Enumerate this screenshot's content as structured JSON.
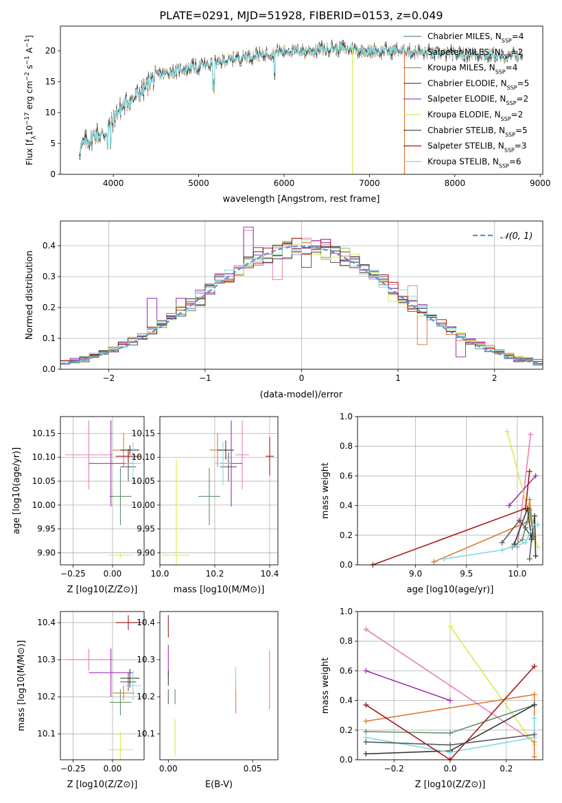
{
  "figure_title": "PLATE=0291, MJD=51928, FIBERID=0153, z=0.049",
  "colors": {
    "Chabrier MILES": "#5f8f6a",
    "Salpeter MILES": "#e97fb6",
    "Kroupa MILES": "#df7a35",
    "Chabrier ELODIE": "#5a5a5a",
    "Salpeter ELODIE": "#9a2fb4",
    "Kroupa ELODIE": "#d8ec4e",
    "Chabrier STELIB": "#383838",
    "Salpeter STELIB": "#a01818",
    "Kroupa STELIB": "#7fd8e0",
    "gaussian": "#5f8fdc"
  },
  "chart_data": [
    {
      "id": "spectrum",
      "type": "line",
      "title": "",
      "xlabel": "wavelength [Angstrom, rest frame]",
      "ylabel": "Flux [f_λ 10^-17 erg cm^-2 s^-1 A^-1]",
      "xlim": [
        3380,
        9030
      ],
      "ylim": [
        0,
        24
      ],
      "xticks": [
        4000,
        5000,
        6000,
        7000,
        8000,
        9000
      ],
      "yticks": [
        0,
        5,
        10,
        15,
        20
      ],
      "data_range": [
        3600,
        8800
      ],
      "continuum": {
        "x": [
          3600,
          3700,
          3800,
          3900,
          4000,
          4100,
          4300,
          4500,
          4800,
          5000,
          5200,
          5500,
          5800,
          6000,
          6300,
          6600,
          7000,
          7400,
          7800,
          8200,
          8600,
          8800
        ],
        "y": [
          4.0,
          5.5,
          6.5,
          6.5,
          9.0,
          11.0,
          13.0,
          16.0,
          17.0,
          17.5,
          18.0,
          19.0,
          19.5,
          20.0,
          20.0,
          20.5,
          20.0,
          20.0,
          19.5,
          19.5,
          19.0,
          19.5
        ]
      },
      "dropouts": [
        {
          "series": "Kroupa ELODIE",
          "x": 6800
        },
        {
          "series": "Kroupa MILES",
          "x": 7410
        }
      ],
      "legend": {
        "placement": "top-right",
        "entries": [
          {
            "name": "Chabrier MILES",
            "nssp": "4"
          },
          {
            "name": "Salpeter MILES",
            "nssp": "2"
          },
          {
            "name": "Kroupa MILES",
            "nssp": "4"
          },
          {
            "name": "Chabrier ELODIE",
            "nssp": "5"
          },
          {
            "name": "Salpeter ELODIE",
            "nssp": "2"
          },
          {
            "name": "Kroupa ELODIE",
            "nssp": "2"
          },
          {
            "name": "Chabrier STELIB",
            "nssp": "5"
          },
          {
            "name": "Salpeter STELIB",
            "nssp": "3"
          },
          {
            "name": "Kroupa STELIB",
            "nssp": "6"
          }
        ]
      }
    },
    {
      "id": "residuals",
      "type": "histogram",
      "xlabel": "(data-model)/error",
      "ylabel": "Normed distribution",
      "xlim": [
        -2.5,
        2.5
      ],
      "ylim": [
        0,
        0.48
      ],
      "xticks": [
        -2,
        -1,
        0,
        1,
        2
      ],
      "yticks": [
        0.0,
        0.1,
        0.2,
        0.3,
        0.4
      ],
      "grid": true,
      "bin_width": 0.1,
      "legend": {
        "placement": "top-right",
        "entries": [
          "𝒩(0, 1)"
        ]
      },
      "highlighted_bins": [
        {
          "series": "Salpeter ELODIE",
          "x0": -0.6,
          "x1": -0.5,
          "y": 0.46
        },
        {
          "series": "Salpeter ELODIE",
          "x0": -1.6,
          "x1": -1.5,
          "y": 0.23
        },
        {
          "series": "Salpeter ELODIE",
          "x0": -1.3,
          "x1": -1.2,
          "y": 0.23
        },
        {
          "series": "Salpeter ELODIE",
          "x0": 1.6,
          "x1": 1.7,
          "y": 0.04
        },
        {
          "series": "Salpeter MILES",
          "x0": -0.6,
          "x1": -0.5,
          "y": 0.45
        },
        {
          "series": "Salpeter MILES",
          "x0": -0.3,
          "x1": -0.2,
          "y": 0.29
        },
        {
          "series": "Salpeter MILES",
          "x0": 1.1,
          "x1": 1.2,
          "y": 0.27
        },
        {
          "series": "Kroupa MILES",
          "x0": 1.2,
          "x1": 1.3,
          "y": 0.08
        },
        {
          "series": "Kroupa ELODIE",
          "x0": 0.9,
          "x1": 1.0,
          "y": 0.22
        },
        {
          "series": "Chabrier ELODIE",
          "x0": 0.0,
          "x1": 0.1,
          "y": 0.33
        }
      ]
    },
    {
      "id": "age_vs_Z",
      "type": "scatter",
      "xlabel": "Z [log10(Z/Z⊙)]",
      "ylabel": "age  [log10(age/yr)]",
      "xlim": [
        -0.33,
        0.2
      ],
      "ylim": [
        9.875,
        10.185
      ],
      "xticks": [
        "-0.25",
        "0.00"
      ],
      "xtick_values": [
        -0.25,
        0.0
      ],
      "yticks": [
        "9.90",
        "9.95",
        "10.00",
        "10.05",
        "10.10",
        "10.15"
      ],
      "ytick_values": [
        9.9,
        9.95,
        10.0,
        10.05,
        10.1,
        10.15
      ],
      "grid": true,
      "points": [
        {
          "series": "Chabrier MILES",
          "x": 0.05,
          "y": 10.018,
          "xerr": 0.07,
          "yerr": 0.06
        },
        {
          "series": "Salpeter MILES",
          "x": -0.15,
          "y": 10.105,
          "xerr": 0.15,
          "yerr": 0.072
        },
        {
          "series": "Kroupa MILES",
          "x": 0.07,
          "y": 10.115,
          "xerr": 0.07,
          "yerr": 0.035
        },
        {
          "series": "Chabrier ELODIE",
          "x": 0.1,
          "y": 10.08,
          "xerr": 0.05,
          "yerr": 0.03
        },
        {
          "series": "Salpeter ELODIE",
          "x": -0.01,
          "y": 10.087,
          "xerr": 0.14,
          "yerr": 0.09
        },
        {
          "series": "Kroupa ELODIE",
          "x": 0.05,
          "y": 9.895,
          "xerr": 0.08,
          "yerr": 0.004
        },
        {
          "series": "Chabrier STELIB",
          "x": 0.11,
          "y": 10.115,
          "xerr": 0.06,
          "yerr": 0.01
        },
        {
          "series": "Salpeter STELIB",
          "x": 0.1,
          "y": 10.102,
          "xerr": 0.08,
          "yerr": 0.015
        },
        {
          "series": "Kroupa STELIB",
          "x": 0.13,
          "y": 10.087,
          "xerr": 0.05,
          "yerr": 0.045
        }
      ]
    },
    {
      "id": "age_vs_mass",
      "type": "scatter",
      "xlabel": "mass [log10(M/M⊙)]",
      "ylabel": "",
      "xlim": [
        10.0,
        10.43
      ],
      "ylim": [
        9.875,
        10.185
      ],
      "xticks": [
        "10.0",
        "10.2",
        "10.4"
      ],
      "xtick_values": [
        10.0,
        10.2,
        10.4
      ],
      "yticks": [
        "9.90",
        "9.95",
        "10.00",
        "10.05",
        "10.10",
        "10.15"
      ],
      "ytick_values": [
        9.9,
        9.95,
        10.0,
        10.05,
        10.1,
        10.15
      ],
      "grid": true,
      "points": [
        {
          "series": "Chabrier MILES",
          "x": 10.18,
          "y": 10.018,
          "xerr": 0.04,
          "yerr": 0.06
        },
        {
          "series": "Salpeter MILES",
          "x": 10.3,
          "y": 10.105,
          "xerr": 0.025,
          "yerr": 0.072
        },
        {
          "series": "Kroupa MILES",
          "x": 10.21,
          "y": 10.115,
          "xerr": 0.03,
          "yerr": 0.035
        },
        {
          "series": "Chabrier ELODIE",
          "x": 10.25,
          "y": 10.08,
          "xerr": 0.03,
          "yerr": 0.03
        },
        {
          "series": "Salpeter ELODIE",
          "x": 10.26,
          "y": 10.087,
          "xerr": 0.04,
          "yerr": 0.09
        },
        {
          "series": "Kroupa ELODIE",
          "x": 10.06,
          "y": 9.895,
          "xerr": 0.05,
          "yerr": 0.2
        },
        {
          "series": "Chabrier STELIB",
          "x": 10.24,
          "y": 10.115,
          "xerr": 0.03,
          "yerr": 0.02
        },
        {
          "series": "Salpeter STELIB",
          "x": 10.4,
          "y": 10.102,
          "xerr": 0.015,
          "yerr": 0.04
        },
        {
          "series": "Kroupa STELIB",
          "x": 10.23,
          "y": 10.087,
          "xerr": 0.03,
          "yerr": 0.045
        }
      ]
    },
    {
      "id": "weight_vs_age",
      "type": "line",
      "xlabel": "age  [log10(age/yr)]",
      "ylabel": "mass weight",
      "xlim": [
        8.43,
        10.25
      ],
      "ylim": [
        0,
        1.0
      ],
      "xticks": [
        "9.0",
        "9.5",
        "10.0"
      ],
      "xtick_values": [
        9.0,
        9.5,
        10.0
      ],
      "yticks": [
        "0.0",
        "0.2",
        "0.4",
        "0.6",
        "0.8",
        "1.0"
      ],
      "ytick_values": [
        0.0,
        0.2,
        0.4,
        0.6,
        0.8,
        1.0
      ],
      "grid": true,
      "series": [
        {
          "name": "Kroupa MILES",
          "x": [
            9.18,
            10.1,
            10.12,
            10.15
          ],
          "y": [
            0.02,
            0.29,
            0.44,
            0.26
          ]
        },
        {
          "name": "Salpeter MILES",
          "x": [
            10.0,
            10.13
          ],
          "y": [
            0.12,
            0.88
          ]
        },
        {
          "name": "Salpeter ELODIE",
          "x": [
            9.92,
            10.18
          ],
          "y": [
            0.4,
            0.6
          ]
        },
        {
          "name": "Kroupa ELODIE",
          "x": [
            9.9,
            10.2
          ],
          "y": [
            0.9,
            0.12
          ]
        },
        {
          "name": "Chabrier MILES",
          "x": [
            9.95,
            10.05,
            10.12,
            10.16
          ],
          "y": [
            0.12,
            0.17,
            0.37,
            0.19
          ]
        },
        {
          "name": "Chabrier ELODIE",
          "x": [
            9.85,
            10.02,
            10.08,
            10.14,
            10.12
          ],
          "y": [
            0.15,
            0.3,
            0.25,
            0.18,
            0.04
          ]
        },
        {
          "name": "Chabrier STELIB",
          "x": [
            9.97,
            10.1,
            10.14,
            10.17,
            10.18
          ],
          "y": [
            0.14,
            0.38,
            0.17,
            0.33,
            0.06
          ]
        },
        {
          "name": "Salpeter STELIB",
          "x": [
            8.58,
            10.08,
            10.12
          ],
          "y": [
            0.0,
            0.38,
            0.63
          ]
        },
        {
          "name": "Kroupa STELIB",
          "x": [
            9.28,
            9.85,
            10.08,
            10.16,
            10.2
          ],
          "y": [
            0.04,
            0.1,
            0.15,
            0.27,
            0.27
          ]
        }
      ]
    },
    {
      "id": "mass_vs_Z",
      "type": "scatter",
      "xlabel": "Z [log10(Z/Z⊙)]",
      "ylabel": "mass [log10(M/M⊙)]",
      "xlim": [
        -0.33,
        0.2
      ],
      "ylim": [
        10.03,
        10.43
      ],
      "xticks": [
        "-0.25",
        "0.00"
      ],
      "xtick_values": [
        -0.25,
        0.0
      ],
      "yticks": [
        "10.1",
        "10.2",
        "10.3",
        "10.4"
      ],
      "ytick_values": [
        10.1,
        10.2,
        10.3,
        10.4
      ],
      "grid": true,
      "points": [
        {
          "series": "Chabrier MILES",
          "x": 0.05,
          "y": 10.185,
          "xerr": 0.07,
          "yerr": 0.035
        },
        {
          "series": "Salpeter MILES",
          "x": -0.15,
          "y": 10.3,
          "xerr": 0.15,
          "yerr": 0.03
        },
        {
          "series": "Kroupa MILES",
          "x": 0.07,
          "y": 10.21,
          "xerr": 0.07,
          "yerr": 0.02
        },
        {
          "series": "Chabrier ELODIE",
          "x": 0.1,
          "y": 10.24,
          "xerr": 0.05,
          "yerr": 0.025
        },
        {
          "series": "Salpeter ELODIE",
          "x": -0.01,
          "y": 10.265,
          "xerr": 0.14,
          "yerr": 0.065
        },
        {
          "series": "Kroupa ELODIE",
          "x": 0.05,
          "y": 10.057,
          "xerr": 0.08,
          "yerr": 0.05
        },
        {
          "series": "Chabrier STELIB",
          "x": 0.11,
          "y": 10.25,
          "xerr": 0.06,
          "yerr": 0.025
        },
        {
          "series": "Salpeter STELIB",
          "x": 0.1,
          "y": 10.4,
          "xerr": 0.08,
          "yerr": 0.02
        },
        {
          "series": "Kroupa STELIB",
          "x": 0.13,
          "y": 10.23,
          "xerr": 0.05,
          "yerr": 0.04
        }
      ]
    },
    {
      "id": "mass_vs_ebv",
      "type": "scatter",
      "xlabel": "E(B-V)",
      "ylabel": "",
      "xlim": [
        -0.005,
        0.065
      ],
      "ylim": [
        10.03,
        10.43
      ],
      "xticks": [
        "0.00",
        "0.05"
      ],
      "xtick_values": [
        0.0,
        0.05
      ],
      "yticks": [
        "10.1",
        "10.2",
        "10.3",
        "10.4"
      ],
      "ytick_values": [
        10.1,
        10.2,
        10.3,
        10.4
      ],
      "grid": false,
      "points": [
        {
          "series": "Chabrier MILES",
          "x": 0.004,
          "y": 10.2,
          "xerr": 0.0,
          "yerr": 0.02
        },
        {
          "series": "Salpeter MILES",
          "x": 0.06,
          "y": 10.245,
          "xerr": 0.0,
          "yerr": 0.08
        },
        {
          "series": "Kroupa MILES",
          "x": 0.04,
          "y": 10.2,
          "xerr": 0.0,
          "yerr": 0.045
        },
        {
          "series": "Chabrier ELODIE",
          "x": 0.0,
          "y": 10.2,
          "xerr": 0.0,
          "yerr": 0.02
        },
        {
          "series": "Salpeter ELODIE",
          "x": 0.0,
          "y": 10.3,
          "xerr": 0.0,
          "yerr": 0.04
        },
        {
          "series": "Kroupa ELODIE",
          "x": 0.004,
          "y": 10.09,
          "xerr": 0.0,
          "yerr": 0.05
        },
        {
          "series": "Chabrier STELIB",
          "x": 0.0,
          "y": 10.25,
          "xerr": 0.0,
          "yerr": 0.02
        },
        {
          "series": "Salpeter STELIB",
          "x": 0.0,
          "y": 10.39,
          "xerr": 0.0,
          "yerr": 0.03
        },
        {
          "series": "Kroupa STELIB",
          "x": 0.04,
          "y": 10.25,
          "xerr": 0.0,
          "yerr": 0.03
        }
      ]
    },
    {
      "id": "weight_vs_Z",
      "type": "line",
      "xlabel": "Z [log10(Z/Z⊙)]",
      "ylabel": "mass weight",
      "xlim": [
        -0.33,
        0.33
      ],
      "ylim": [
        0,
        1.0
      ],
      "xticks": [
        "-0.2",
        "0.0",
        "0.2"
      ],
      "xtick_values": [
        -0.2,
        0.0,
        0.2
      ],
      "yticks": [
        "0.0",
        "0.2",
        "0.4",
        "0.6",
        "0.8",
        "1.0"
      ],
      "ytick_values": [
        0.0,
        0.2,
        0.4,
        0.6,
        0.8,
        1.0
      ],
      "grid": true,
      "series": [
        {
          "name": "Salpeter MILES",
          "x": [
            -0.3,
            0.3
          ],
          "y": [
            0.88,
            0.12
          ]
        },
        {
          "name": "Salpeter ELODIE",
          "x": [
            -0.3,
            0.0
          ],
          "y": [
            0.6,
            0.4
          ]
        },
        {
          "name": "Kroupa ELODIE",
          "x": [
            0.0,
            0.3
          ],
          "y": [
            0.9,
            0.1
          ]
        },
        {
          "name": "Kroupa MILES",
          "x": [
            -0.3,
            0.3,
            0.3
          ],
          "y": [
            0.26,
            0.44,
            0.02
          ]
        },
        {
          "name": "Chabrier MILES",
          "x": [
            -0.3,
            0.0,
            0.3
          ],
          "y": [
            0.19,
            0.18,
            0.37
          ]
        },
        {
          "name": "Chabrier STELIB",
          "x": [
            -0.3,
            0.0,
            0.3
          ],
          "y": [
            0.04,
            0.06,
            0.37
          ]
        },
        {
          "name": "Kroupa STELIB",
          "x": [
            -0.3,
            0.0,
            0.3,
            0.3
          ],
          "y": [
            0.15,
            0.05,
            0.15,
            0.28
          ]
        },
        {
          "name": "Salpeter STELIB",
          "x": [
            -0.3,
            0.0,
            0.3
          ],
          "y": [
            0.37,
            0.0,
            0.63
          ]
        },
        {
          "name": "Chabrier ELODIE",
          "x": [
            -0.3,
            0.0,
            0.3
          ],
          "y": [
            0.12,
            0.1,
            0.17
          ]
        }
      ]
    }
  ]
}
